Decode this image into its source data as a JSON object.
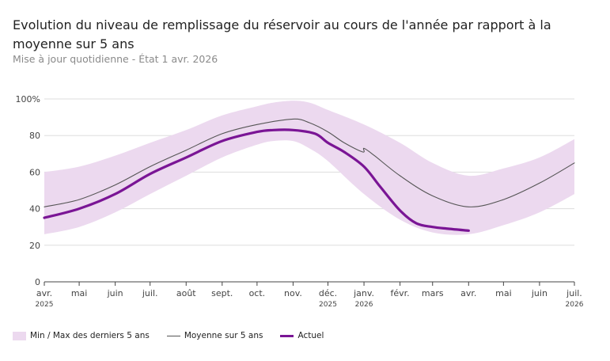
{
  "header": {
    "title": "Evolution du niveau de remplissage du réservoir au cours de l'année par rapport à la moyenne sur 5 ans",
    "subtitle": "Mise à jour quotidienne - État 1 avr. 2026"
  },
  "legend": {
    "band": "Min / Max des derniers 5 ans",
    "avg": "Moyenne sur 5 ans",
    "cur": "Actuel"
  },
  "colors": {
    "band": "#ecd9ef",
    "avg": "#555555",
    "cur": "#7a1595",
    "grid": "#dddddd"
  },
  "chart_data": {
    "type": "line",
    "title": "Evolution du niveau de remplissage du réservoir au cours de l'année par rapport à la moyenne sur 5 ans",
    "ylim": [
      0,
      100
    ],
    "yticks": [
      0,
      20,
      40,
      60,
      80,
      100
    ],
    "ytick_labels": [
      "0",
      "20",
      "40",
      "60",
      "80",
      "100%"
    ],
    "xlim": [
      "2025-04-01",
      "2026-07-01"
    ],
    "xticks": [
      {
        "date": "2025-04-01",
        "label": "avr.",
        "year": "2025"
      },
      {
        "date": "2025-05-01",
        "label": "mai",
        "year": ""
      },
      {
        "date": "2025-06-01",
        "label": "juin",
        "year": ""
      },
      {
        "date": "2025-07-01",
        "label": "juil.",
        "year": ""
      },
      {
        "date": "2025-08-01",
        "label": "août",
        "year": ""
      },
      {
        "date": "2025-09-01",
        "label": "sept.",
        "year": ""
      },
      {
        "date": "2025-10-01",
        "label": "oct.",
        "year": ""
      },
      {
        "date": "2025-11-01",
        "label": "nov.",
        "year": ""
      },
      {
        "date": "2025-12-01",
        "label": "déc.",
        "year": "2025"
      },
      {
        "date": "2026-01-01",
        "label": "janv.",
        "year": "2026"
      },
      {
        "date": "2026-02-01",
        "label": "févr.",
        "year": ""
      },
      {
        "date": "2026-03-01",
        "label": "mars",
        "year": ""
      },
      {
        "date": "2026-04-01",
        "label": "avr.",
        "year": ""
      },
      {
        "date": "2026-05-01",
        "label": "mai",
        "year": ""
      },
      {
        "date": "2026-06-01",
        "label": "juin",
        "year": ""
      },
      {
        "date": "2026-07-01",
        "label": "juil.",
        "year": "2026"
      }
    ],
    "grid": true,
    "legend_position": "bottom-left",
    "band": [
      {
        "date": "2025-04-01",
        "min": 26,
        "max": 60
      },
      {
        "date": "2025-05-01",
        "min": 30,
        "max": 63
      },
      {
        "date": "2025-06-01",
        "min": 38,
        "max": 69
      },
      {
        "date": "2025-07-01",
        "min": 48,
        "max": 76
      },
      {
        "date": "2025-08-01",
        "min": 58,
        "max": 83
      },
      {
        "date": "2025-09-01",
        "min": 68,
        "max": 91
      },
      {
        "date": "2025-10-01",
        "min": 75,
        "max": 96
      },
      {
        "date": "2025-10-15",
        "min": 77,
        "max": 98
      },
      {
        "date": "2025-11-01",
        "min": 77,
        "max": 99
      },
      {
        "date": "2025-11-15",
        "min": 73,
        "max": 98
      },
      {
        "date": "2025-12-01",
        "min": 66,
        "max": 94
      },
      {
        "date": "2026-01-01",
        "min": 48,
        "max": 86
      },
      {
        "date": "2026-02-01",
        "min": 34,
        "max": 76
      },
      {
        "date": "2026-03-01",
        "min": 27,
        "max": 65
      },
      {
        "date": "2026-04-01",
        "min": 26,
        "max": 58
      },
      {
        "date": "2026-05-01",
        "min": 31,
        "max": 62
      },
      {
        "date": "2026-06-01",
        "min": 38,
        "max": 68
      },
      {
        "date": "2026-07-01",
        "min": 48,
        "max": 78
      }
    ],
    "series": [
      {
        "name": "Moyenne sur 5 ans",
        "points": [
          {
            "date": "2025-04-01",
            "value": 41
          },
          {
            "date": "2025-05-01",
            "value": 45
          },
          {
            "date": "2025-06-01",
            "value": 53
          },
          {
            "date": "2025-07-01",
            "value": 63
          },
          {
            "date": "2025-08-01",
            "value": 72
          },
          {
            "date": "2025-09-01",
            "value": 81
          },
          {
            "date": "2025-10-01",
            "value": 86
          },
          {
            "date": "2025-11-01",
            "value": 89
          },
          {
            "date": "2025-11-15",
            "value": 87
          },
          {
            "date": "2025-12-01",
            "value": 82
          },
          {
            "date": "2025-12-15",
            "value": 76
          },
          {
            "date": "2025-12-31",
            "value": 71
          },
          {
            "date": "2026-01-01",
            "value": 73
          },
          {
            "date": "2026-01-10",
            "value": 69
          },
          {
            "date": "2026-02-01",
            "value": 58
          },
          {
            "date": "2026-03-01",
            "value": 47
          },
          {
            "date": "2026-04-01",
            "value": 41
          },
          {
            "date": "2026-05-01",
            "value": 45
          },
          {
            "date": "2026-06-01",
            "value": 54
          },
          {
            "date": "2026-07-01",
            "value": 65
          }
        ]
      },
      {
        "name": "Actuel",
        "points": [
          {
            "date": "2025-04-01",
            "value": 35
          },
          {
            "date": "2025-05-01",
            "value": 40
          },
          {
            "date": "2025-06-01",
            "value": 48
          },
          {
            "date": "2025-07-01",
            "value": 59
          },
          {
            "date": "2025-08-01",
            "value": 68
          },
          {
            "date": "2025-09-01",
            "value": 77
          },
          {
            "date": "2025-10-01",
            "value": 82
          },
          {
            "date": "2025-10-15",
            "value": 83
          },
          {
            "date": "2025-11-01",
            "value": 83
          },
          {
            "date": "2025-11-20",
            "value": 81
          },
          {
            "date": "2025-12-01",
            "value": 76
          },
          {
            "date": "2025-12-15",
            "value": 71
          },
          {
            "date": "2026-01-01",
            "value": 63
          },
          {
            "date": "2026-01-15",
            "value": 52
          },
          {
            "date": "2026-02-01",
            "value": 39
          },
          {
            "date": "2026-02-15",
            "value": 32
          },
          {
            "date": "2026-03-01",
            "value": 30
          },
          {
            "date": "2026-03-15",
            "value": 29
          },
          {
            "date": "2026-04-01",
            "value": 28
          }
        ]
      }
    ]
  }
}
